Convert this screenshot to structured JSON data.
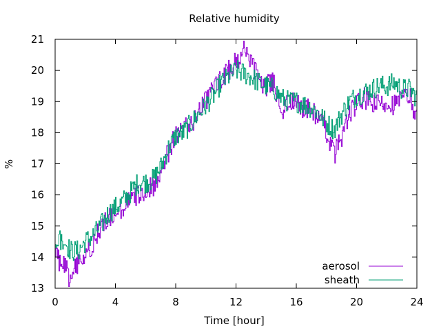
{
  "chart_data": {
    "type": "line",
    "title": "Relative humidity",
    "xlabel": "Time [hour]",
    "ylabel": "%",
    "xlim": [
      0,
      24
    ],
    "ylim": [
      13,
      21
    ],
    "x_ticks": [
      0,
      4,
      8,
      12,
      16,
      20,
      24
    ],
    "y_ticks": [
      13,
      14,
      15,
      16,
      17,
      18,
      19,
      20,
      21
    ],
    "grid": false,
    "legend_position": "bottom-right",
    "x": [
      0,
      0.5,
      1,
      1.5,
      2,
      2.5,
      3,
      3.5,
      4,
      4.5,
      5,
      5.5,
      6,
      6.5,
      7,
      7.5,
      8,
      8.5,
      9,
      9.5,
      10,
      10.5,
      11,
      11.5,
      12,
      12.5,
      13,
      13.5,
      14,
      14.5,
      15,
      15.5,
      16,
      16.5,
      17,
      17.5,
      18,
      18.5,
      19,
      19.5,
      20,
      20.5,
      21,
      21.5,
      22,
      22.5,
      23,
      23.5,
      24
    ],
    "series": [
      {
        "name": "aerosol",
        "color": "#9400d3",
        "values": [
          14.0,
          13.8,
          13.3,
          13.8,
          14.0,
          14.5,
          14.9,
          15.2,
          15.3,
          15.6,
          15.8,
          16.0,
          16.2,
          16.3,
          16.8,
          17.4,
          17.9,
          18.1,
          18.3,
          18.7,
          19.0,
          19.5,
          19.7,
          20.0,
          20.3,
          20.6,
          20.2,
          19.7,
          19.5,
          19.6,
          18.7,
          19.0,
          18.9,
          18.8,
          18.7,
          18.5,
          18.0,
          17.3,
          17.9,
          18.6,
          18.9,
          19.1,
          18.9,
          18.9,
          19.0,
          18.9,
          19.1,
          19.2,
          18.4
        ]
      },
      {
        "name": "sheath",
        "color": "#009e73",
        "values": [
          14.4,
          14.6,
          14.2,
          14.2,
          14.5,
          14.7,
          15.0,
          15.4,
          15.6,
          15.8,
          16.1,
          16.4,
          16.4,
          16.5,
          16.9,
          17.5,
          17.9,
          18.0,
          18.3,
          18.6,
          18.9,
          19.2,
          19.6,
          19.8,
          20.0,
          19.9,
          19.8,
          19.6,
          19.5,
          19.4,
          19.1,
          19.0,
          19.0,
          18.9,
          18.8,
          18.6,
          18.3,
          18.1,
          18.6,
          19.0,
          19.2,
          19.3,
          19.4,
          19.5,
          19.5,
          19.6,
          19.4,
          19.4,
          19.1
        ]
      }
    ]
  }
}
